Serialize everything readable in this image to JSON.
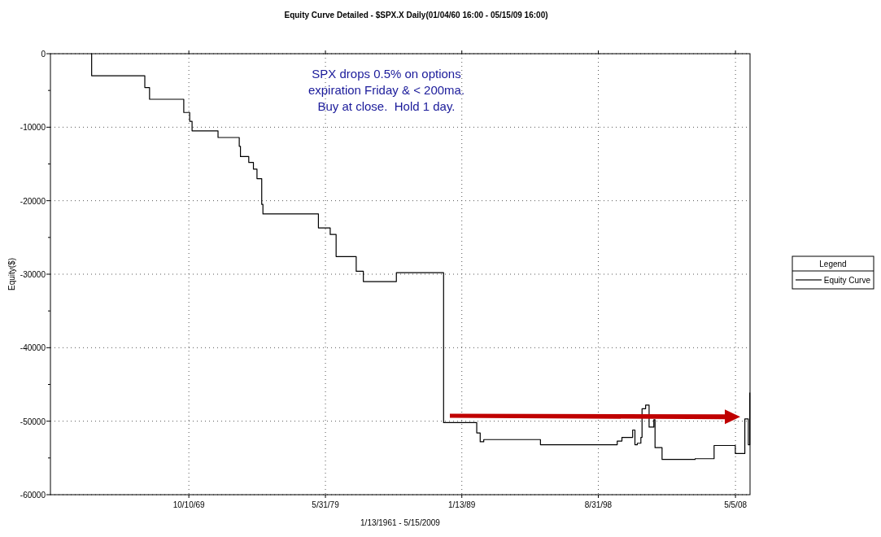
{
  "chart_data": {
    "type": "step",
    "title": "Equity Curve Detailed - $SPX.X Daily(01/04/60 16:00 - 05/15/09 16:00)",
    "xlabel": "1/13/1961 - 5/15/2009",
    "ylabel": "Equity($)",
    "annotations": [
      "SPX drops 0.5% on options\nexpiration Friday & < 200ma.\nBuy at close.  Hold 1 day."
    ],
    "x": [
      "1962-11-15",
      "1962-12",
      "1966-09",
      "1967-01",
      "1969-06",
      "1969-11",
      "1970-01",
      "1971-11",
      "1973-05",
      "1973-06",
      "1974-01",
      "1974-05",
      "1974-08",
      "1974-12",
      "1975-01",
      "1978-12",
      "1979-10",
      "1980-03",
      "1981-08",
      "1982-02",
      "1984-06",
      "1987-10",
      "1990-02",
      "1990-05",
      "1990-08",
      "1994-08",
      "2000-01",
      "2000-05",
      "2001-02",
      "2001-04",
      "2001-06",
      "2001-09",
      "2001-10",
      "2002-01",
      "2002-04",
      "2002-08",
      "2002-09",
      "2003-03",
      "2005-07",
      "2006-11",
      "2008-05",
      "2009-01",
      "2009-04-01",
      "2009-05-08"
    ],
    "series": [
      {
        "name": "Equity Curve",
        "color": "#000000",
        "values": [
          0,
          -3000,
          -4600,
          -6200,
          -8000,
          -9200,
          -10500,
          -11400,
          -12600,
          -14000,
          -14800,
          -15700,
          -17000,
          -20500,
          -21800,
          -23700,
          -24600,
          -27600,
          -29600,
          -31000,
          -29800,
          -50200,
          -51600,
          -52800,
          -52500,
          -53200,
          -52700,
          -52200,
          -51200,
          -53200,
          -53000,
          -52200,
          -48300,
          -47800,
          -50800,
          -49800,
          -53600,
          -55200,
          -55100,
          -53300,
          -54400,
          -49700,
          -53200,
          -46100
        ]
      }
    ],
    "xlim": [
      "1960-01-04",
      "2009-05-15"
    ],
    "xticks": [
      {
        "value": "1969-10-10",
        "label": "10/10/69"
      },
      {
        "value": "1979-05-31",
        "label": "5/31/79"
      },
      {
        "value": "1989-01-13",
        "label": "1/13/89"
      },
      {
        "value": "1998-08-31",
        "label": "8/31/98"
      },
      {
        "value": "2008-05-05",
        "label": "5/5/08"
      }
    ],
    "ylim": [
      -60000,
      0
    ],
    "yticks": [
      -60000,
      {
        "value": -55000,
        "label": null
      },
      -50000,
      {
        "value": -45000,
        "label": null
      },
      -40000,
      {
        "value": -35000,
        "label": null
      },
      -30000,
      {
        "value": -25000,
        "label": null
      },
      -20000,
      {
        "value": -15000,
        "label": null
      },
      -10000,
      {
        "value": -5000,
        "label": null
      },
      0
    ],
    "grid": true,
    "legend": "right",
    "legend_title": "Legend"
  }
}
